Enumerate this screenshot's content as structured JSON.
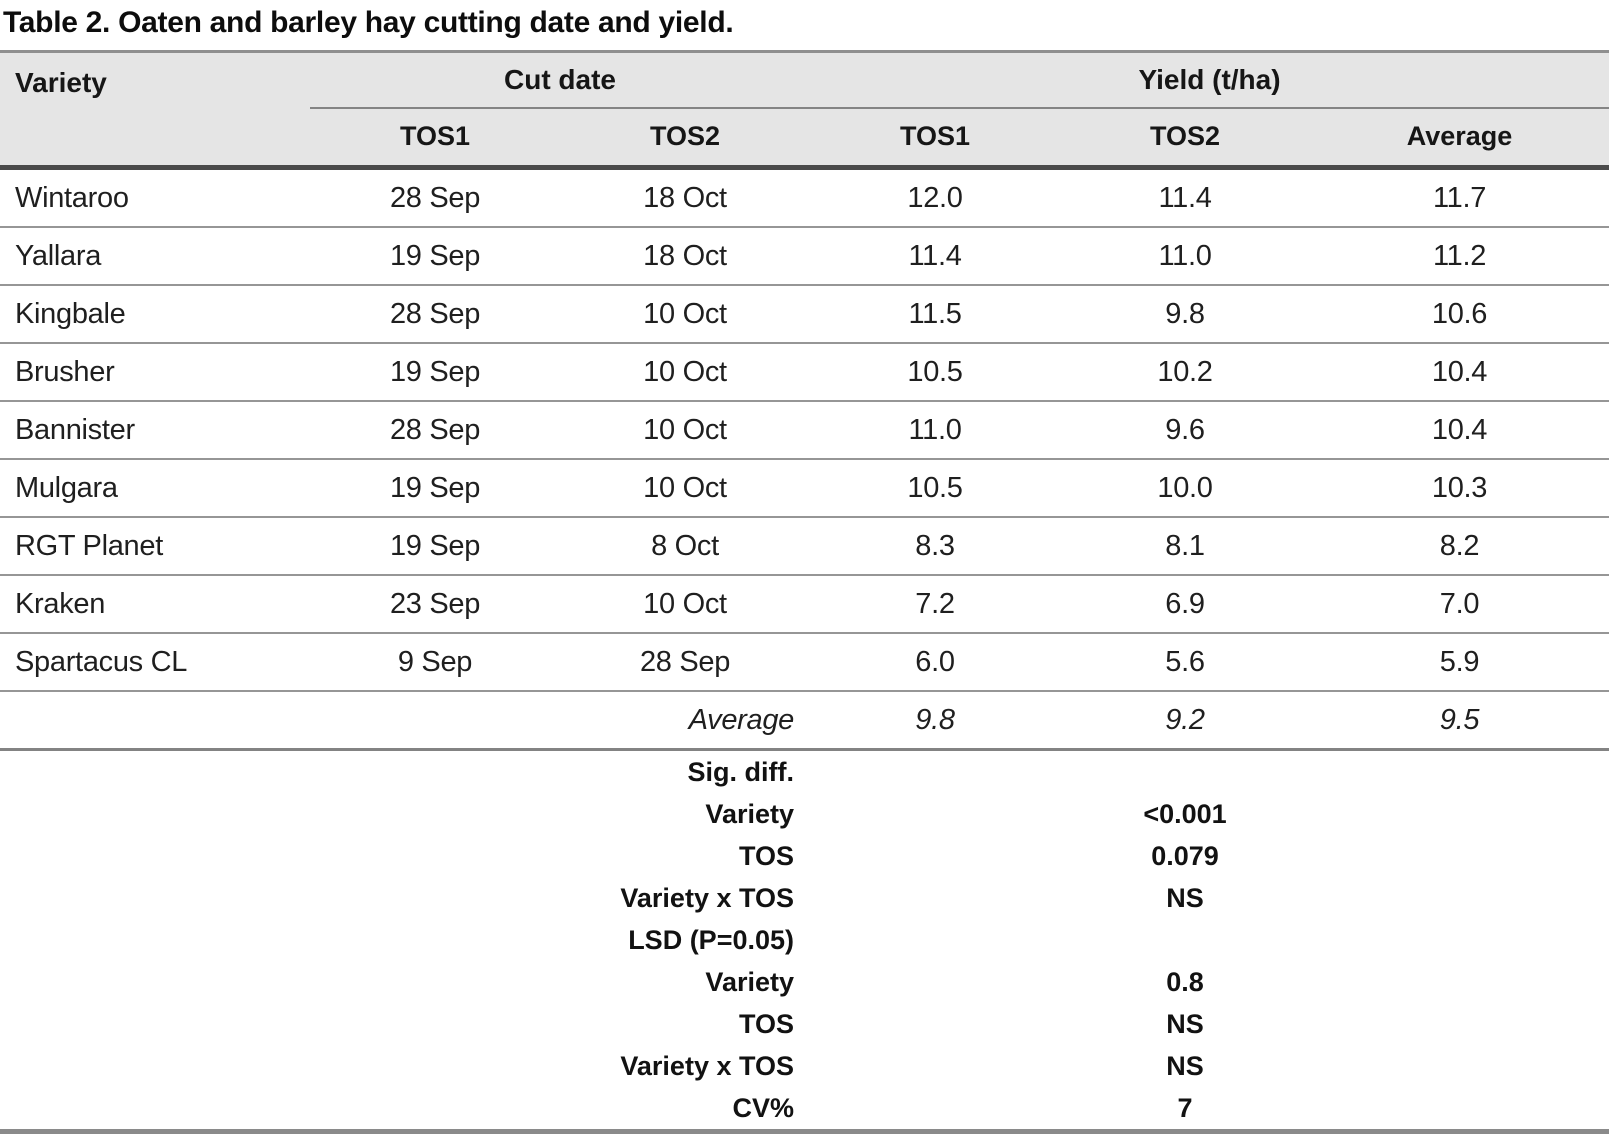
{
  "title": "Table 2. Oaten and barley hay cutting date and yield.",
  "table": {
    "headers": {
      "variety": "Variety",
      "cut_date_group": "Cut date",
      "yield_group": "Yield (t/ha)",
      "cut_tos1": "TOS1",
      "cut_tos2": "TOS2",
      "yield_tos1": "TOS1",
      "yield_tos2": "TOS2",
      "average": "Average"
    },
    "rows": [
      {
        "variety": "Wintaroo",
        "cut_tos1": "28 Sep",
        "cut_tos2": "18 Oct",
        "yield_tos1": "12.0",
        "yield_tos2": "11.4",
        "average": "11.7"
      },
      {
        "variety": "Yallara",
        "cut_tos1": "19 Sep",
        "cut_tos2": "18 Oct",
        "yield_tos1": "11.4",
        "yield_tos2": "11.0",
        "average": "11.2"
      },
      {
        "variety": "Kingbale",
        "cut_tos1": "28 Sep",
        "cut_tos2": "10 Oct",
        "yield_tos1": "11.5",
        "yield_tos2": "9.8",
        "average": "10.6"
      },
      {
        "variety": "Brusher",
        "cut_tos1": "19 Sep",
        "cut_tos2": "10 Oct",
        "yield_tos1": "10.5",
        "yield_tos2": "10.2",
        "average": "10.4"
      },
      {
        "variety": "Bannister",
        "cut_tos1": "28 Sep",
        "cut_tos2": "10 Oct",
        "yield_tos1": "11.0",
        "yield_tos2": "9.6",
        "average": "10.4"
      },
      {
        "variety": "Mulgara",
        "cut_tos1": "19 Sep",
        "cut_tos2": "10 Oct",
        "yield_tos1": "10.5",
        "yield_tos2": "10.0",
        "average": "10.3"
      },
      {
        "variety": "RGT Planet",
        "cut_tos1": "19 Sep",
        "cut_tos2": "8 Oct",
        "yield_tos1": "8.3",
        "yield_tos2": "8.1",
        "average": "8.2"
      },
      {
        "variety": "Kraken",
        "cut_tos1": "23 Sep",
        "cut_tos2": "10 Oct",
        "yield_tos1": "7.2",
        "yield_tos2": "6.9",
        "average": "7.0"
      },
      {
        "variety": "Spartacus CL",
        "cut_tos1": "9 Sep",
        "cut_tos2": "28 Sep",
        "yield_tos1": "6.0",
        "yield_tos2": "5.6",
        "average": "5.9"
      }
    ],
    "average_row": {
      "label": "Average",
      "yield_tos1": "9.8",
      "yield_tos2": "9.2",
      "average": "9.5"
    },
    "stats": [
      {
        "label": "Sig. diff.",
        "value": ""
      },
      {
        "label": "Variety",
        "value": "<0.001"
      },
      {
        "label": "TOS",
        "value": "0.079"
      },
      {
        "label": "Variety x TOS",
        "value": "NS"
      },
      {
        "label": "LSD (P=0.05)",
        "value": ""
      },
      {
        "label": "Variety",
        "value": "0.8"
      },
      {
        "label": "TOS",
        "value": "NS"
      },
      {
        "label": "Variety x TOS",
        "value": "NS"
      },
      {
        "label": "CV%",
        "value": "7"
      }
    ]
  },
  "colors": {
    "header_background": "#e5e5e5",
    "heavy_rule": "#4a4a4a",
    "light_rule": "#969696",
    "medium_rule": "#838383",
    "text": "#1f1f1f"
  }
}
